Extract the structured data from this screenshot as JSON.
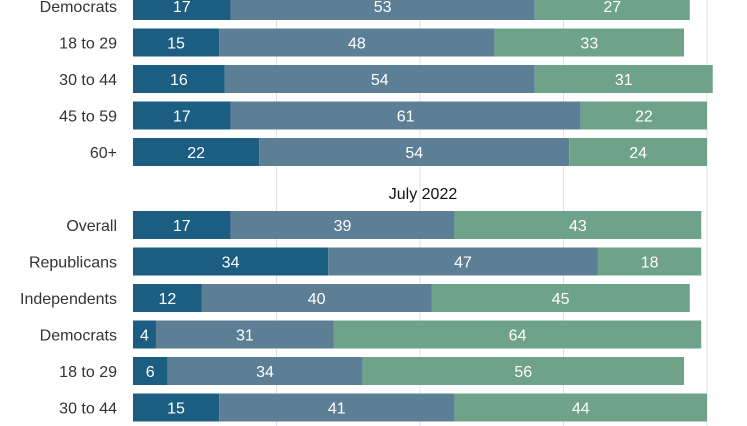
{
  "chart_data": {
    "type": "bar",
    "stacked": true,
    "orientation": "horizontal",
    "colors": [
      "#1b5e82",
      "#5c7f96",
      "#6fa389"
    ],
    "xlim": [
      0,
      100
    ],
    "grid": true,
    "panels": [
      {
        "title": "",
        "rows": [
          {
            "label": "Democrats",
            "values": [
              17,
              53,
              27
            ]
          },
          {
            "label": "18 to 29",
            "values": [
              15,
              48,
              33
            ]
          },
          {
            "label": "30 to 44",
            "values": [
              16,
              54,
              31
            ]
          },
          {
            "label": "45 to 59",
            "values": [
              17,
              61,
              22
            ]
          },
          {
            "label": "60+",
            "values": [
              22,
              54,
              24
            ]
          }
        ]
      },
      {
        "title": "July 2022",
        "rows": [
          {
            "label": "Overall",
            "values": [
              17,
              39,
              43
            ]
          },
          {
            "label": "Republicans",
            "values": [
              34,
              47,
              18
            ]
          },
          {
            "label": "Independents",
            "values": [
              12,
              40,
              45
            ]
          },
          {
            "label": "Democrats",
            "values": [
              4,
              31,
              64
            ]
          },
          {
            "label": "18 to 29",
            "values": [
              6,
              34,
              56
            ]
          },
          {
            "label": "30 to 44",
            "values": [
              15,
              41,
              44
            ]
          }
        ]
      }
    ]
  }
}
